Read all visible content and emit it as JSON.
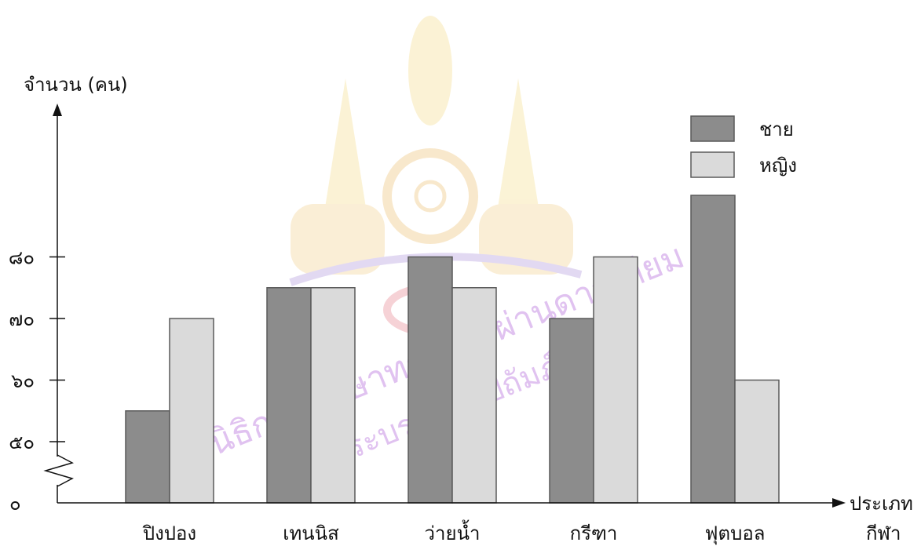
{
  "chart_data": {
    "type": "bar",
    "title": "",
    "ylabel": "จำนวน (คน)",
    "xlabel": "ประเภท กีฬา",
    "xlabel_lines": [
      "ประเภท",
      "กีฬา"
    ],
    "categories": [
      "ปิงปอง",
      "เทนนิส",
      "ว่ายน้ำ",
      "กรีฑา",
      "ฟุตบอล"
    ],
    "series": [
      {
        "name": "ชาย",
        "values": [
          55,
          75,
          80,
          70,
          90
        ],
        "color": "#8c8c8c"
      },
      {
        "name": "หญิง",
        "values": [
          70,
          75,
          75,
          80,
          60
        ],
        "color": "#dadada"
      }
    ],
    "y_ticks": [
      {
        "value": 0,
        "label": "๐"
      },
      {
        "value": 50,
        "label": "๕๐"
      },
      {
        "value": 60,
        "label": "๖๐"
      },
      {
        "value": 70,
        "label": "๗๐"
      },
      {
        "value": 80,
        "label": "๘๐"
      }
    ],
    "y_axis_break": true,
    "grid": false,
    "legend_position": "top-right",
    "watermark_text": [
      "มูลนิธิการศึกษาทางไกลผ่านดาวเทียม",
      "ในพระบรมราชูปถัมภ์"
    ]
  }
}
